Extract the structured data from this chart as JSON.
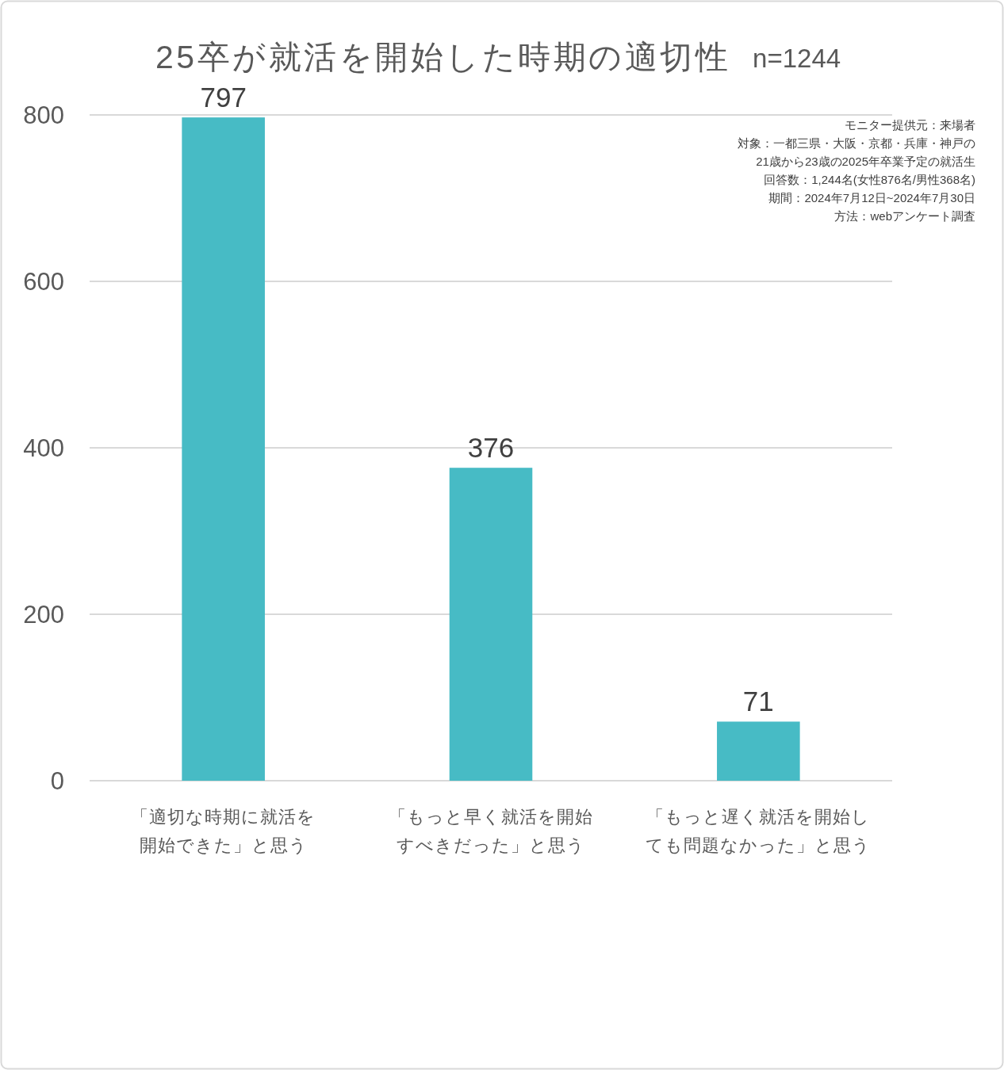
{
  "chart_data": {
    "type": "bar",
    "title": "25卒が就活を開始した時期の適切性",
    "subtitle": "n=1244",
    "categories": [
      "「適切な時期に就活を開始できた」と思う",
      "「もっと早く就活を開始すべきだった」と思う",
      "「もっと遅く就活を開始しても問題なかった」と思う"
    ],
    "values": [
      797,
      376,
      71
    ],
    "color": "#47bbc5",
    "ylim": [
      0,
      800
    ],
    "yticks": [
      0,
      200,
      400,
      600,
      800
    ],
    "grid": "y",
    "data_labels": true,
    "annotations": [
      "モニター提供元：来場者",
      "対象：一都三県・大阪・京都・兵庫・神戸の\n21歳から23歳の2025年卒業予定の就活生",
      "回答数：1,244名(女性876名/男性368名)",
      "期間：2024年7月12日~2024年7月30日",
      "方法：webアンケート調査"
    ]
  }
}
